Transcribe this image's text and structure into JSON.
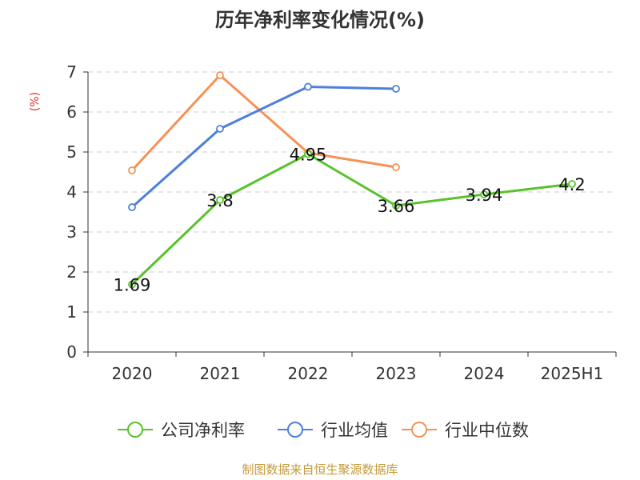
{
  "chart_data": {
    "type": "line",
    "title": "历年净利率变化情况(%)",
    "ylabel": "(%)",
    "categories": [
      "2020",
      "2021",
      "2022",
      "2023",
      "2024",
      "2025H1"
    ],
    "ylim": [
      0,
      7
    ],
    "yticks": [
      0,
      1,
      2,
      3,
      4,
      5,
      6,
      7
    ],
    "grid": true,
    "legend_position": "bottom",
    "series": [
      {
        "name": "公司净利率",
        "color": "#58c22b",
        "values": [
          1.69,
          3.8,
          4.95,
          3.66,
          3.94,
          4.2
        ],
        "show_labels": true
      },
      {
        "name": "行业均值",
        "color": "#4e7fdb",
        "values": [
          3.62,
          5.58,
          6.63,
          6.58,
          null,
          null
        ],
        "show_labels": false
      },
      {
        "name": "行业中位数",
        "color": "#f79156",
        "values": [
          4.54,
          6.92,
          4.98,
          4.62,
          null,
          null
        ],
        "show_labels": false
      }
    ]
  },
  "unit_color": "#e03030",
  "source_text": "制图数据来自恒生聚源数据库",
  "source_color": "#c49a3a"
}
